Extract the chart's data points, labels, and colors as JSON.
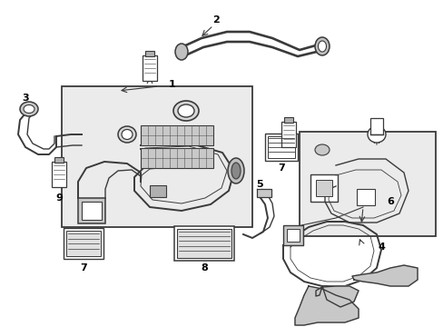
{
  "background_color": "#ffffff",
  "figsize": [
    4.89,
    3.6
  ],
  "dpi": 100,
  "image_b64": ""
}
